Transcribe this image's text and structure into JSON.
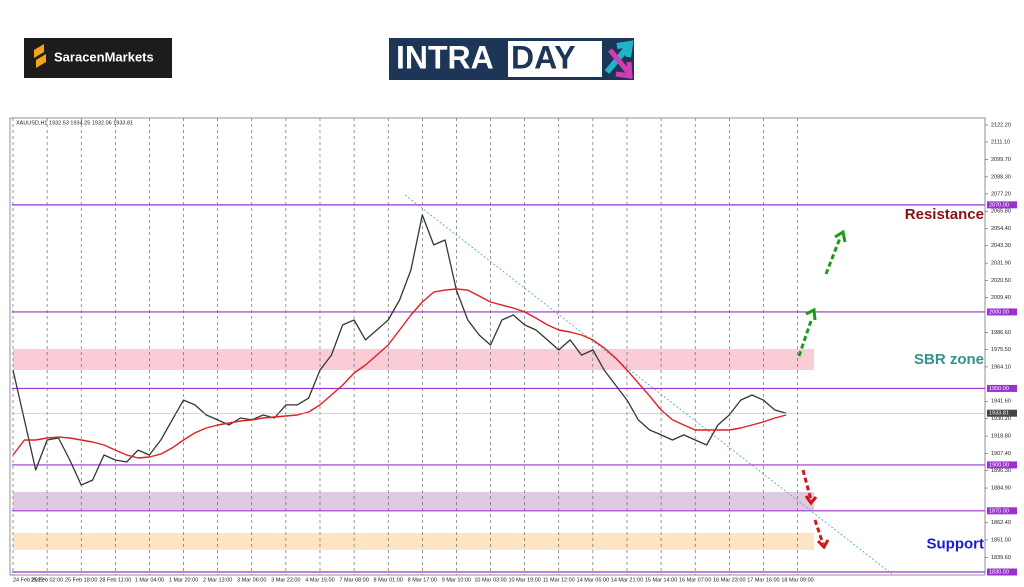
{
  "header": {
    "brand": "SaracenMarkets",
    "logo_left": "INTRA",
    "logo_right": "DAY"
  },
  "chart_data": {
    "type": "line",
    "title": "XAUUSD,H1 1932.53 1934.25 1932.06 1933.81",
    "categories": [
      "24 Feb 2022",
      null,
      null,
      "25 Feb 02:00",
      null,
      null,
      "25 Feb 18:00",
      null,
      null,
      "28 Feb 11:00",
      null,
      null,
      "1 Mar 04:00",
      null,
      null,
      "1 Mar 20:00",
      null,
      null,
      "2 Mar 13:00",
      null,
      null,
      "3 Mar 06:00",
      null,
      null,
      "3 Mar 22:00",
      null,
      null,
      "4 Mar 15:00",
      null,
      null,
      "7 Mar 08:00",
      null,
      null,
      "8 Mar 01:00",
      null,
      null,
      "8 Mar 17:00",
      null,
      null,
      "9 Mar 10:00",
      null,
      null,
      "10 Mar 03:00",
      null,
      null,
      "10 Mar 19:00",
      null,
      null,
      "11 Mar 12:00",
      null,
      null,
      "14 Mar 05:00",
      null,
      null,
      "14 Mar 21:00",
      null,
      null,
      "15 Mar 14:00",
      null,
      null,
      "16 Mar 07:00",
      null,
      null,
      "16 Mar 23:00",
      null,
      null,
      "17 Mar 16:00",
      null,
      null,
      "18 Mar 09:00",
      null,
      null
    ],
    "series": [
      {
        "name": "XAUUSD",
        "color": "#2f3a2f",
        "values": [
          1962.0,
          1929.4,
          1896.7,
          1916.3,
          1917.6,
          1903.2,
          1886.9,
          1890.1,
          1906.5,
          1903.2,
          1901.9,
          1909.7,
          1906.5,
          1916.3,
          1929.4,
          1942.4,
          1939.2,
          1932.6,
          1929.4,
          1926.1,
          1930.7,
          1929.4,
          1932.6,
          1930.7,
          1939.2,
          1939.2,
          1943.7,
          1962.0,
          1971.8,
          1991.5,
          1994.7,
          1981.7,
          1988.2,
          1994.7,
          2007.8,
          2027.4,
          2063.4,
          2043.8,
          2047.0,
          2014.3,
          1994.7,
          1984.9,
          1978.4,
          1994.7,
          1998.0,
          1991.5,
          1988.2,
          1981.7,
          1975.1,
          1981.7,
          1971.8,
          1975.1,
          1962.0,
          1952.2,
          1942.4,
          1929.4,
          1922.8,
          1919.6,
          1916.3,
          1919.6,
          1916.3,
          1913.0,
          1926.1,
          1932.6,
          1942.4,
          1945.7,
          1942.4,
          1935.9,
          1933.81,
          null,
          null,
          null
        ]
      },
      {
        "name": "MA",
        "color": "#e02020",
        "values": [
          1906.5,
          1916.3,
          1916.3,
          1917.6,
          1918.2,
          1917.6,
          1916.3,
          1915.0,
          1913.0,
          1909.7,
          1906.5,
          1904.5,
          1905.2,
          1907.1,
          1911.1,
          1916.3,
          1920.9,
          1924.1,
          1926.1,
          1927.4,
          1928.7,
          1929.4,
          1930.7,
          1931.3,
          1932.0,
          1932.6,
          1934.6,
          1939.2,
          1945.7,
          1952.2,
          1960.1,
          1965.3,
          1971.8,
          1978.4,
          1988.2,
          1998.0,
          2006.5,
          2013.0,
          2014.3,
          2015.0,
          2014.3,
          2010.4,
          2006.5,
          2004.5,
          2002.6,
          2000.0,
          1996.0,
          1991.5,
          1988.2,
          1986.9,
          1984.9,
          1981.7,
          1976.4,
          1969.9,
          1962.0,
          1953.5,
          1945.0,
          1935.9,
          1929.4,
          1926.1,
          1922.8,
          1922.8,
          1922.8,
          1922.8,
          1924.1,
          1926.1,
          1928.1,
          1930.7,
          1932.6,
          null,
          null,
          null
        ]
      }
    ],
    "ylim": [
      1830,
      2122.2
    ],
    "yticks": [
      {
        "value": 2122.2,
        "label": "2122.20"
      },
      {
        "value": 2111.1,
        "label": "2111.10"
      },
      {
        "value": 2099.7,
        "label": "2099.70"
      },
      {
        "value": 2088.3,
        "label": "2088.30"
      },
      {
        "value": 2077.2,
        "label": "2077.20"
      },
      {
        "value": 2065.8,
        "label": "2065.80"
      },
      {
        "value": 2054.4,
        "label": "2054.40"
      },
      {
        "value": 2043.3,
        "label": "2043.30"
      },
      {
        "value": 2031.9,
        "label": "2031.90"
      },
      {
        "value": 2020.5,
        "label": "2020.50"
      },
      {
        "value": 2009.4,
        "label": "2009.40"
      },
      {
        "value": 1986.6,
        "label": "1986.60"
      },
      {
        "value": 1975.5,
        "label": "1975.50"
      },
      {
        "value": 1964.1,
        "label": "1964.10"
      },
      {
        "value": 1941.6,
        "label": "1941.60"
      },
      {
        "value": 1930.2,
        "label": "1930.20"
      },
      {
        "value": 1918.8,
        "label": "1918.80"
      },
      {
        "value": 1907.4,
        "label": "1907.40"
      },
      {
        "value": 1896.3,
        "label": "1896.30"
      },
      {
        "value": 1884.9,
        "label": "1884.90"
      },
      {
        "value": 1862.4,
        "label": "1862.40"
      },
      {
        "value": 1851.0,
        "label": "1851.00"
      },
      {
        "value": 1839.6,
        "label": "1839.60"
      }
    ],
    "levels": [
      {
        "value": 2070,
        "label": "2070.00"
      },
      {
        "value": 2000,
        "label": "2000.00"
      },
      {
        "value": 1950,
        "label": "1950.00"
      },
      {
        "value": 1900,
        "label": "1900.00"
      },
      {
        "value": 1870,
        "label": "1870.00"
      },
      {
        "value": 1830,
        "label": "1830.00"
      }
    ],
    "level_color": "#9b30d0",
    "last_price": {
      "value": 1933.81,
      "label": "1933.81"
    },
    "zones": [
      {
        "from": 1962.0,
        "to": 1975.8,
        "color": "#f9c4cf"
      },
      {
        "from": 1870.5,
        "to": 1882.3,
        "color": "#d9c2dc"
      },
      {
        "from": 1844.4,
        "to": 1855.5,
        "color": "#fde0b8"
      }
    ],
    "annotations": [
      {
        "text": "Resistance",
        "value": 2063.4,
        "color": "#8b1010"
      },
      {
        "text": "SBR zone",
        "value": 1968.5,
        "color": "#3a8f8f"
      },
      {
        "text": "Support",
        "value": 1848.0,
        "color": "#1a1ad8"
      }
    ],
    "grid": true
  }
}
